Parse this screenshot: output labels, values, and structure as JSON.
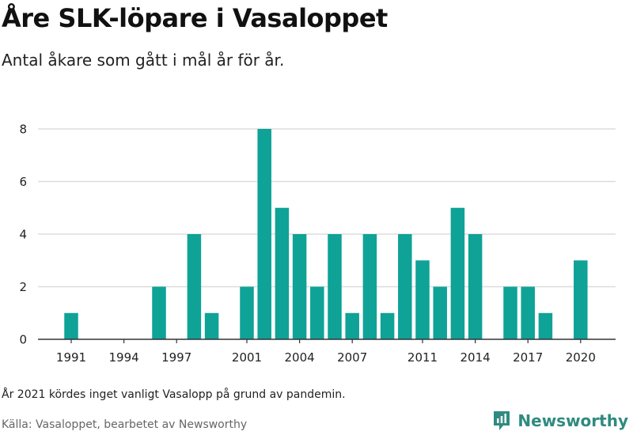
{
  "header": {
    "title": "Åre SLK-löpare i Vasaloppet",
    "subtitle": "Antal åkare som gått i mål år för år."
  },
  "footer": {
    "note": "År 2021 kördes inget vanligt Vasalopp på grund av pandemin.",
    "source": "Källa: Vasaloppet, bearbetet av Newsworthy",
    "brand": "Newsworthy",
    "brand_icon": "newsworthy-logo-icon"
  },
  "colors": {
    "bar": "#0fa297",
    "grid": "#dddddd",
    "axis": "#333333",
    "brand": "#2f8a80"
  },
  "chart_data": {
    "type": "bar",
    "title": "Åre SLK-löpare i Vasaloppet",
    "subtitle": "Antal åkare som gått i mål år för år.",
    "xlabel": "",
    "ylabel": "",
    "ylim": [
      0,
      8
    ],
    "yticks": [
      0,
      2,
      4,
      6,
      8
    ],
    "xtick_labels": [
      "1991",
      "1994",
      "1997",
      "2001",
      "2004",
      "2007",
      "2011",
      "2014",
      "2017",
      "2020"
    ],
    "grid": true,
    "categories": [
      1991,
      1992,
      1993,
      1994,
      1995,
      1996,
      1997,
      1998,
      1999,
      2000,
      2001,
      2002,
      2003,
      2004,
      2005,
      2006,
      2007,
      2008,
      2009,
      2010,
      2011,
      2012,
      2013,
      2014,
      2015,
      2016,
      2017,
      2018,
      2019,
      2020
    ],
    "values": [
      1,
      0,
      0,
      0,
      0,
      2,
      0,
      4,
      1,
      0,
      2,
      8,
      5,
      4,
      2,
      4,
      1,
      4,
      1,
      4,
      3,
      2,
      5,
      4,
      0,
      2,
      2,
      1,
      0,
      3
    ]
  }
}
